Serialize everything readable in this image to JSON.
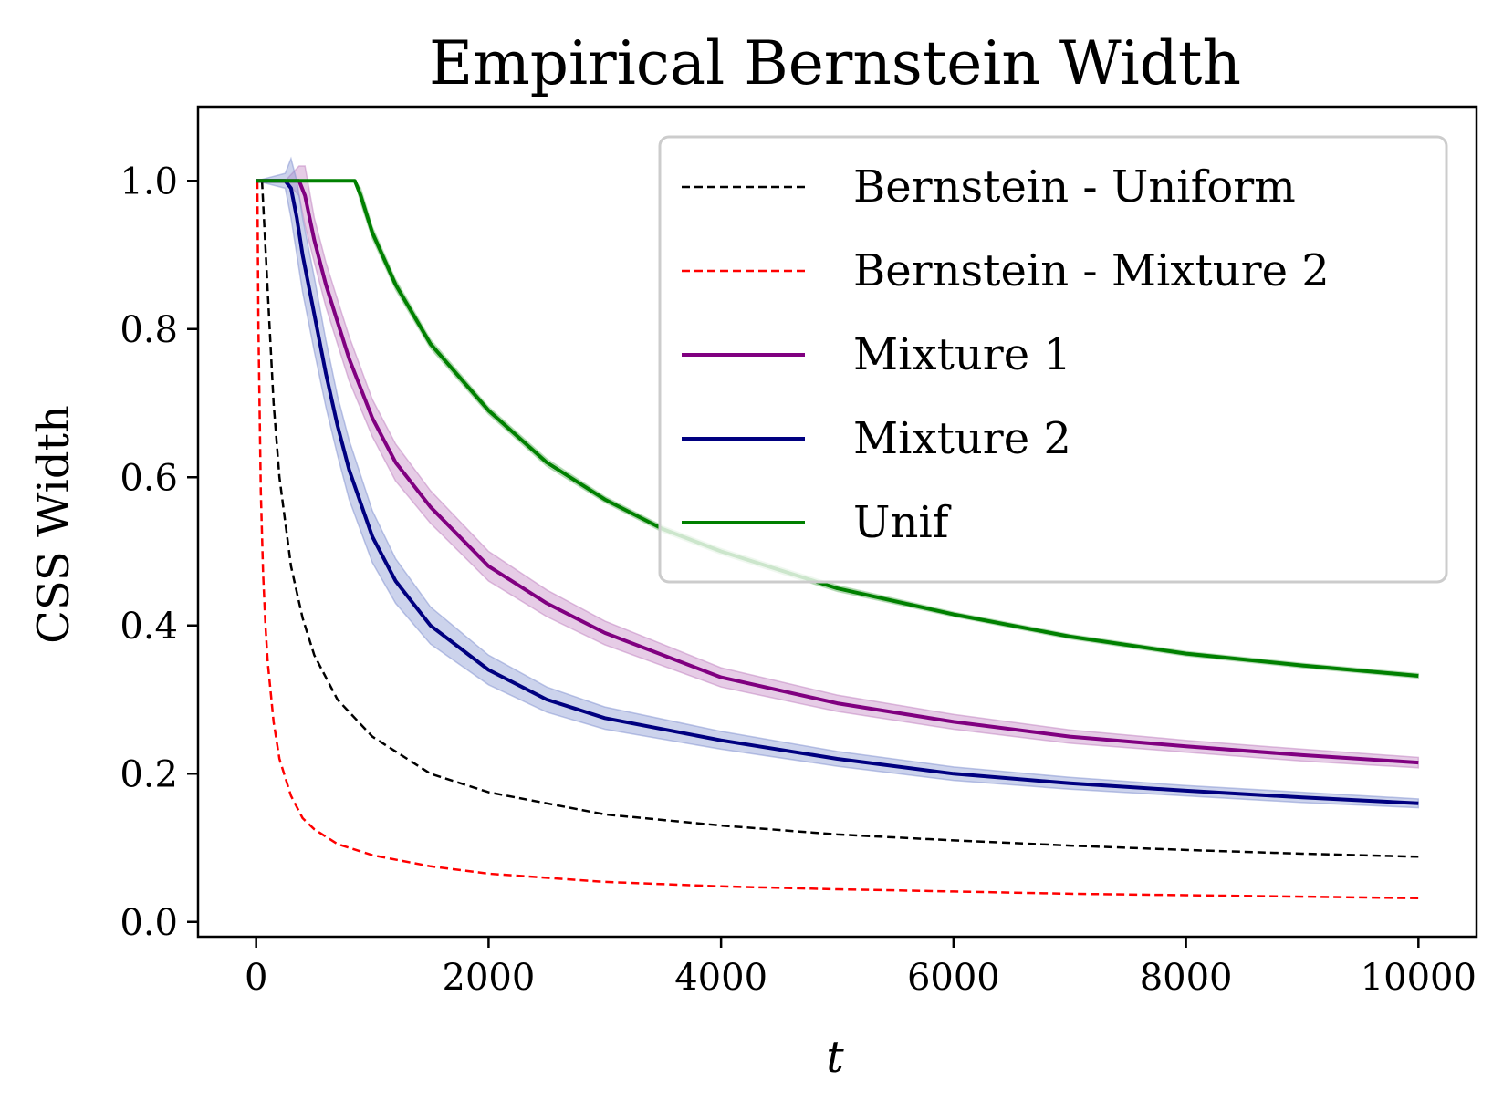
{
  "chart_data": {
    "type": "line",
    "title": "Empirical Bernstein Width",
    "xlabel": "t",
    "ylabel": "CSS Width",
    "xlim": [
      -500,
      10500
    ],
    "ylim": [
      -0.02,
      1.1
    ],
    "xticks": [
      0,
      2000,
      4000,
      6000,
      8000,
      10000
    ],
    "xtick_labels": [
      "0",
      "2000",
      "4000",
      "6000",
      "8000",
      "10000"
    ],
    "yticks": [
      0.0,
      0.2,
      0.4,
      0.6,
      0.8,
      1.0
    ],
    "ytick_labels": [
      "0.0",
      "0.2",
      "0.4",
      "0.6",
      "0.8",
      "1.0"
    ],
    "grid": false,
    "legend_position": "top-right",
    "series": [
      {
        "name": "Bernstein - Uniform",
        "color": "#000000",
        "style": "dashed",
        "x": [
          50,
          100,
          150,
          200,
          300,
          400,
          500,
          700,
          1000,
          1500,
          2000,
          3000,
          4000,
          5000,
          6000,
          7000,
          8000,
          9000,
          10000
        ],
        "y": [
          1.0,
          0.85,
          0.7,
          0.6,
          0.48,
          0.41,
          0.36,
          0.3,
          0.25,
          0.2,
          0.175,
          0.145,
          0.13,
          0.118,
          0.11,
          0.103,
          0.097,
          0.092,
          0.088
        ]
      },
      {
        "name": "Bernstein - Mixture 2",
        "color": "#ff0000",
        "style": "dashed",
        "x": [
          10,
          20,
          40,
          60,
          80,
          100,
          150,
          200,
          300,
          400,
          500,
          700,
          1000,
          1500,
          2000,
          3000,
          4000,
          5000,
          6000,
          7000,
          8000,
          9000,
          10000
        ],
        "y": [
          1.0,
          0.8,
          0.58,
          0.47,
          0.4,
          0.35,
          0.27,
          0.22,
          0.17,
          0.14,
          0.125,
          0.105,
          0.09,
          0.075,
          0.065,
          0.054,
          0.048,
          0.044,
          0.041,
          0.038,
          0.036,
          0.034,
          0.032
        ]
      },
      {
        "name": "Mixture 1",
        "color": "#800080",
        "band_color": "#c080c0",
        "style": "solid",
        "x": [
          0,
          250,
          370,
          420,
          500,
          600,
          700,
          800,
          1000,
          1200,
          1500,
          2000,
          2500,
          3000,
          4000,
          5000,
          6000,
          7000,
          8000,
          9000,
          10000
        ],
        "y": [
          1.0,
          1.0,
          1.0,
          0.98,
          0.92,
          0.86,
          0.81,
          0.76,
          0.68,
          0.62,
          0.56,
          0.48,
          0.43,
          0.39,
          0.33,
          0.295,
          0.27,
          0.25,
          0.237,
          0.225,
          0.215
        ],
        "band": [
          0,
          0,
          0.02,
          0.04,
          0.03,
          0.03,
          0.03,
          0.03,
          0.025,
          0.025,
          0.022,
          0.02,
          0.018,
          0.016,
          0.013,
          0.011,
          0.01,
          0.009,
          0.008,
          0.008,
          0.007
        ]
      },
      {
        "name": "Mixture 2",
        "color": "#000080",
        "band_color": "#8090d0",
        "style": "solid",
        "x": [
          0,
          250,
          300,
          350,
          400,
          500,
          600,
          700,
          800,
          1000,
          1200,
          1500,
          2000,
          2500,
          3000,
          4000,
          5000,
          6000,
          7000,
          8000,
          9000,
          10000
        ],
        "y": [
          1.0,
          1.0,
          0.99,
          0.95,
          0.9,
          0.82,
          0.74,
          0.67,
          0.61,
          0.52,
          0.46,
          0.4,
          0.34,
          0.3,
          0.275,
          0.245,
          0.22,
          0.2,
          0.187,
          0.177,
          0.168,
          0.16
        ],
        "band": [
          0,
          0.01,
          0.04,
          0.05,
          0.05,
          0.05,
          0.045,
          0.04,
          0.04,
          0.035,
          0.03,
          0.025,
          0.02,
          0.017,
          0.015,
          0.012,
          0.01,
          0.009,
          0.008,
          0.007,
          0.007,
          0.006
        ]
      },
      {
        "name": "Unif",
        "color": "#008000",
        "band_color": "#80c080",
        "style": "solid",
        "x": [
          0,
          850,
          900,
          1000,
          1200,
          1500,
          2000,
          2500,
          3000,
          3500,
          4000,
          5000,
          6000,
          7000,
          8000,
          9000,
          10000
        ],
        "y": [
          1.0,
          1.0,
          0.98,
          0.93,
          0.86,
          0.78,
          0.69,
          0.62,
          0.57,
          0.53,
          0.5,
          0.45,
          0.415,
          0.385,
          0.362,
          0.346,
          0.332
        ],
        "band": [
          0,
          0,
          0.01,
          0.008,
          0.007,
          0.006,
          0.005,
          0.005,
          0.004,
          0.004,
          0.004,
          0.004,
          0.003,
          0.003,
          0.003,
          0.003,
          0.003
        ]
      }
    ]
  }
}
